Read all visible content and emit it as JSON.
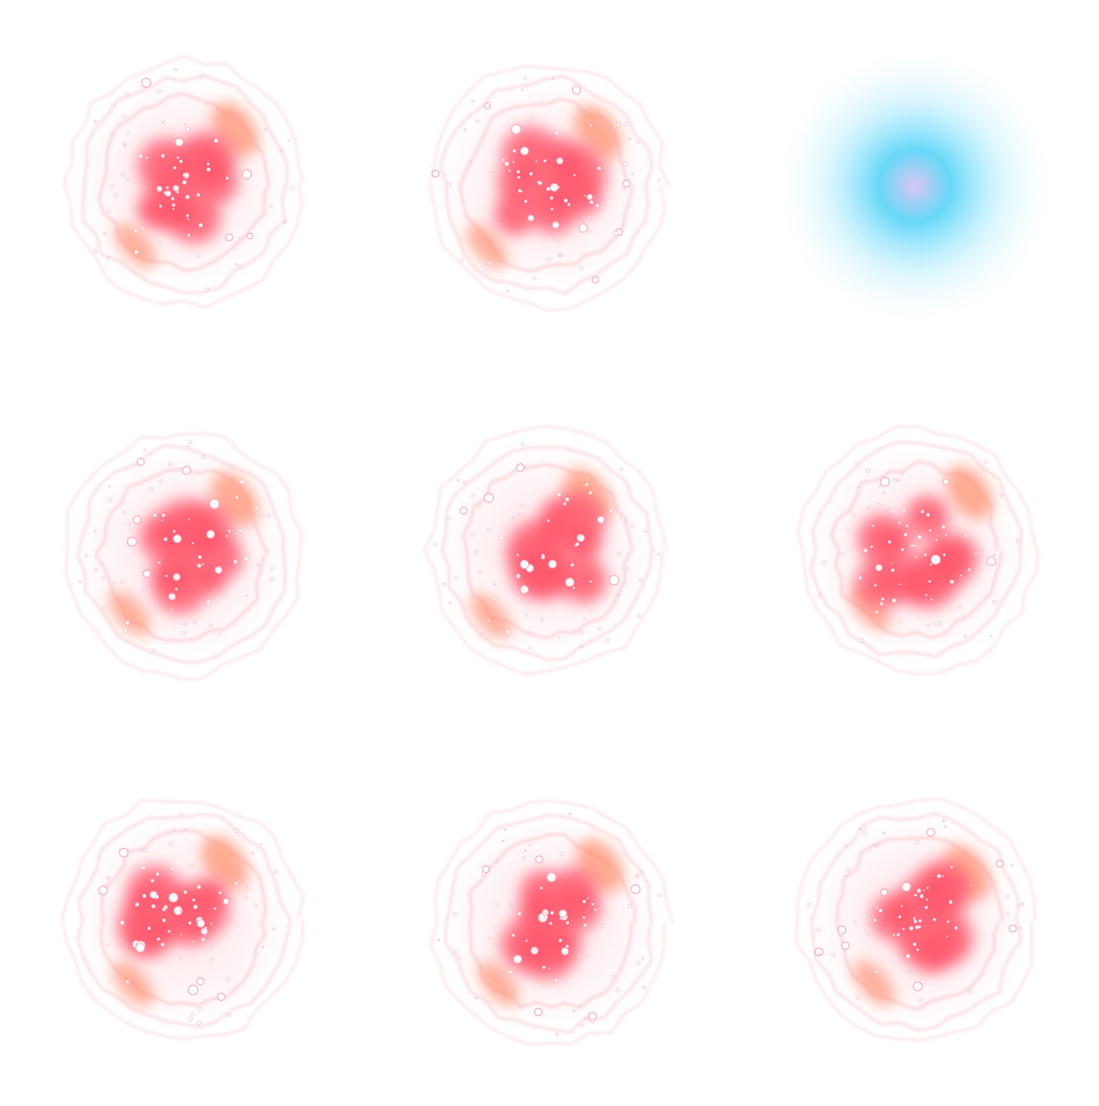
{
  "sprite_sheet": {
    "rows": 3,
    "cols": 3,
    "frames": [
      {
        "kind": "burst",
        "variant": 0
      },
      {
        "kind": "burst",
        "variant": 1
      },
      {
        "kind": "glow",
        "color": "#5fd6f7",
        "core_color": "#d9c7f3"
      },
      {
        "kind": "burst",
        "variant": 2
      },
      {
        "kind": "burst",
        "variant": 1
      },
      {
        "kind": "burst",
        "variant": 3
      },
      {
        "kind": "burst",
        "variant": 2
      },
      {
        "kind": "burst",
        "variant": 0
      },
      {
        "kind": "burst",
        "variant": 3
      }
    ]
  },
  "colors": {
    "background": "#ffffff",
    "burst_core": "#ff5a6e",
    "burst_hot": "#ff8a6a",
    "burst_ring": "#f7a3ad",
    "sparkle": "#ffffff",
    "glow_outer": "#bdefff"
  }
}
